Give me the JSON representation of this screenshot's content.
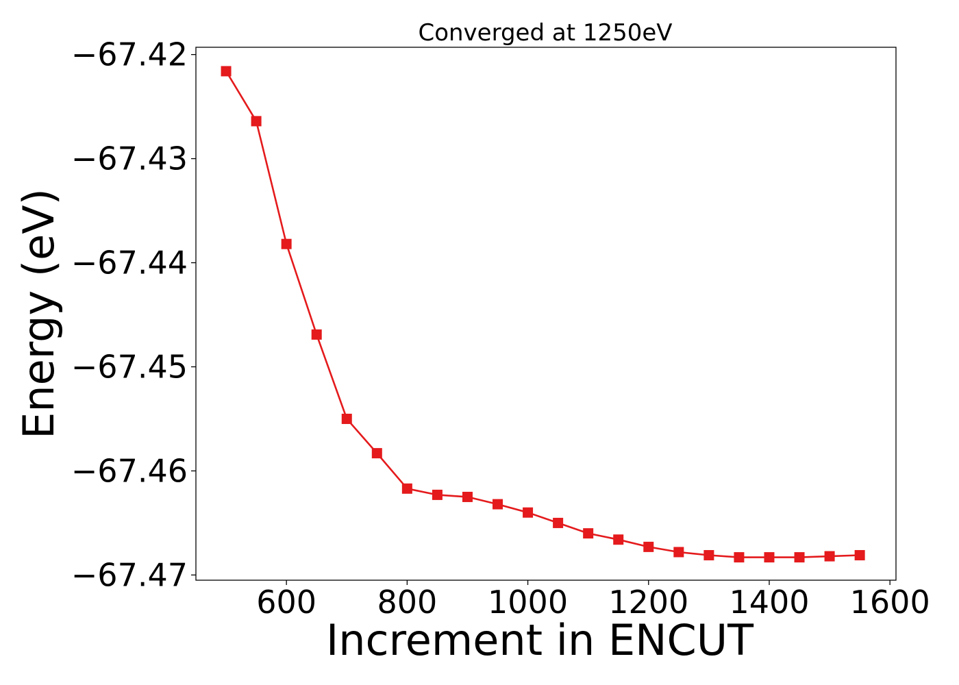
{
  "chart_data": {
    "type": "line",
    "title": "Converged at 1250eV",
    "xlabel": "Increment in ENCUT",
    "ylabel": "Energy (eV)",
    "xlim": [
      450,
      1610
    ],
    "ylim": [
      -67.4705,
      -67.4193
    ],
    "xticks": [
      600,
      800,
      1000,
      1200,
      1400,
      1600
    ],
    "yticks": [
      -67.42,
      -67.43,
      -67.44,
      -67.45,
      -67.46,
      -67.47
    ],
    "xtick_labels": [
      "600",
      "800",
      "1000",
      "1200",
      "1400",
      "1600"
    ],
    "ytick_labels": [
      "−67.42",
      "−67.43",
      "−67.44",
      "−67.45",
      "−67.46",
      "−67.47"
    ],
    "grid": false,
    "series": [
      {
        "color": "#e41a1c",
        "marker": "square",
        "x": [
          500,
          550,
          600,
          650,
          700,
          750,
          800,
          850,
          900,
          950,
          1000,
          1050,
          1100,
          1150,
          1200,
          1250,
          1300,
          1350,
          1400,
          1450,
          1500,
          1550
        ],
        "y": [
          -67.4216,
          -67.4264,
          -67.4382,
          -67.4469,
          -67.455,
          -67.4583,
          -67.4617,
          -67.4623,
          -67.4625,
          -67.4632,
          -67.464,
          -67.465,
          -67.466,
          -67.4666,
          -67.4673,
          -67.4678,
          -67.4681,
          -67.4683,
          -67.4683,
          -67.4683,
          -67.4682,
          -67.4681
        ]
      }
    ]
  }
}
